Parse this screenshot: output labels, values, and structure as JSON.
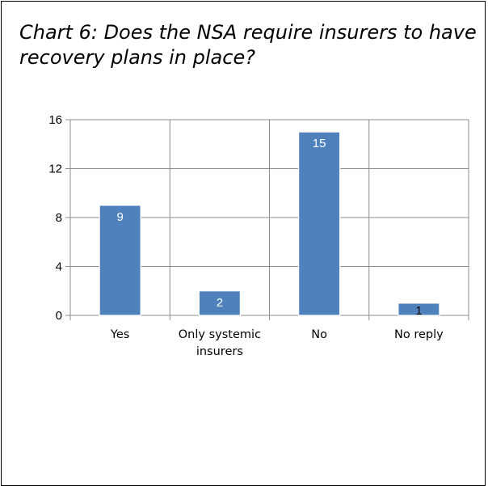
{
  "chart_data": {
    "type": "bar",
    "title": "Chart 6: Does the NSA require insurers to have recovery plans in place?",
    "categories": [
      "Yes",
      "Only systemic insurers",
      "No",
      "No reply"
    ],
    "category_lines": [
      [
        "Yes"
      ],
      [
        "Only systemic",
        "insurers"
      ],
      [
        "No"
      ],
      [
        "No reply"
      ]
    ],
    "values": [
      9,
      2,
      15,
      1
    ],
    "ylim": [
      0,
      16
    ],
    "yticks": [
      0,
      4,
      8,
      12,
      16
    ],
    "grid": true,
    "colors": {
      "bar": "#4f81bd",
      "bar_edge": "#ffffff",
      "grid": "#8c8c8c",
      "axis": "#8c8c8c"
    }
  }
}
